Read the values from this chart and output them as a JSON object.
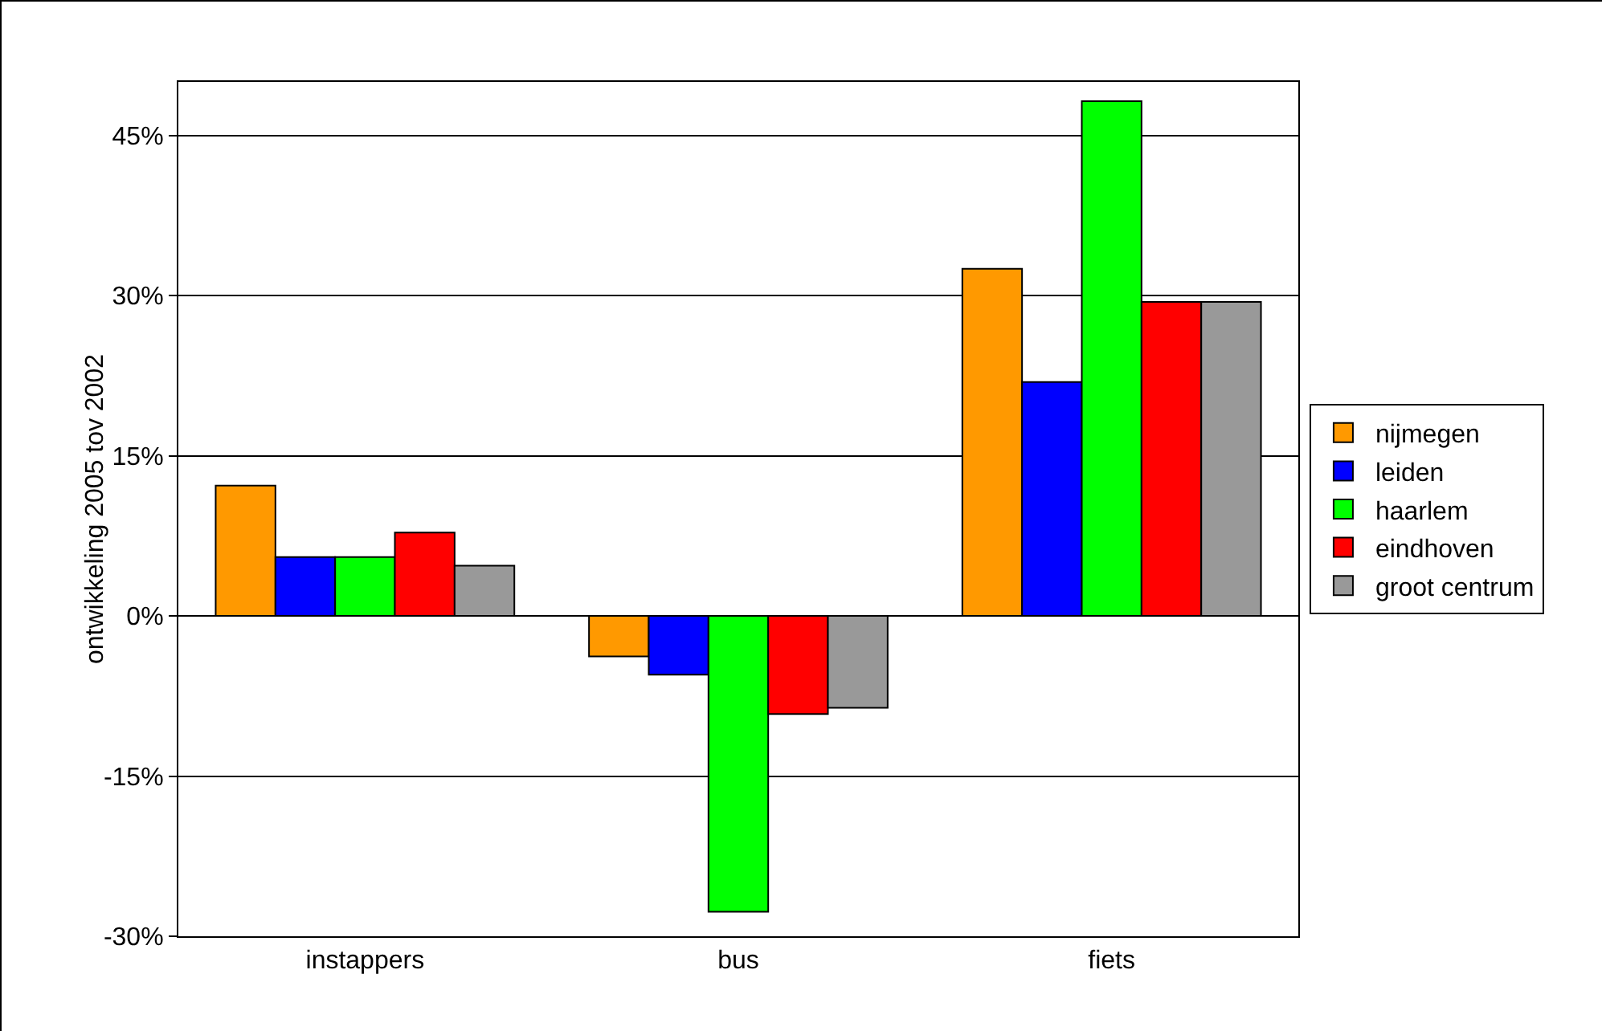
{
  "chart_data": {
    "type": "bar",
    "ylabel": "ontwikkeling 2005 tov 2002",
    "categories": [
      "instappers",
      "bus",
      "fiets"
    ],
    "series": [
      {
        "name": "nijmegen",
        "color": "#ff9900",
        "values": [
          12.2,
          -3.8,
          32.5
        ]
      },
      {
        "name": "leiden",
        "color": "#0000ff",
        "values": [
          5.5,
          -5.5,
          21.9
        ]
      },
      {
        "name": "haarlem",
        "color": "#00ff00",
        "values": [
          5.5,
          -27.7,
          48.2
        ]
      },
      {
        "name": "eindhoven",
        "color": "#ff0000",
        "values": [
          7.8,
          -9.2,
          29.4
        ]
      },
      {
        "name": "groot centrum",
        "color": "#999999",
        "values": [
          4.7,
          -8.6,
          29.4
        ]
      }
    ],
    "ylim": [
      -30,
      50
    ],
    "yticks": [
      {
        "value": -30,
        "label": "-30%"
      },
      {
        "value": -15,
        "label": "-15%"
      },
      {
        "value": 0,
        "label": "0%"
      },
      {
        "value": 15,
        "label": "15%"
      },
      {
        "value": 30,
        "label": "30%"
      },
      {
        "value": 45,
        "label": "45%"
      }
    ],
    "grid": "y",
    "legend": "right"
  }
}
